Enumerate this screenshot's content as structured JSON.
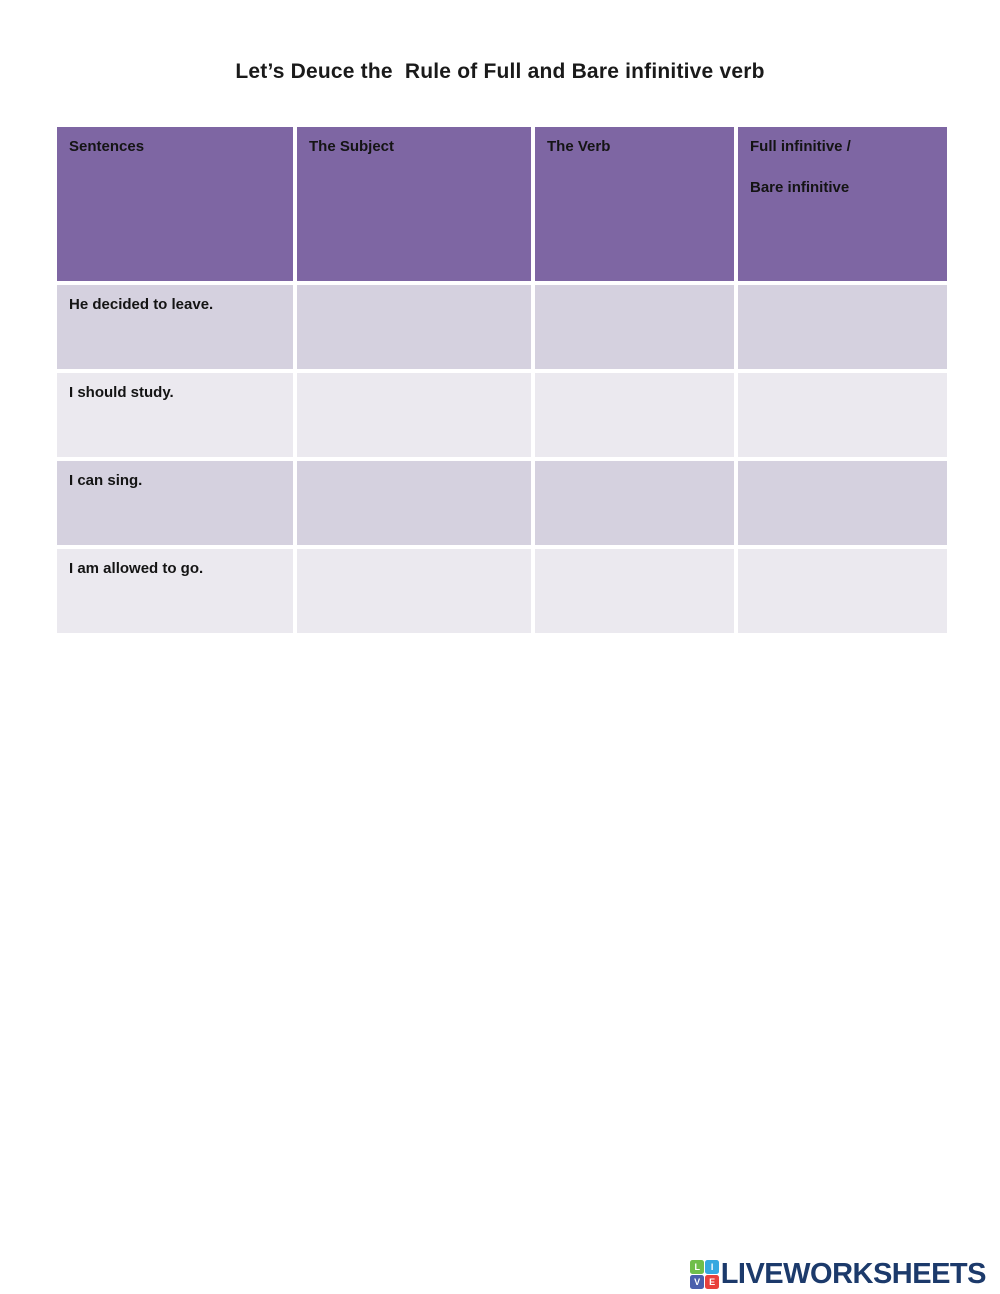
{
  "title": "Let’s Deuce the  Rule of Full and Bare infinitive verb",
  "colors": {
    "header_bg": "#7E66A3",
    "row_odd_bg": "#D5D1DF",
    "row_even_bg": "#EBE9EF",
    "title_text": "#1A1A1A",
    "cell_text": "#141414",
    "logo_text": "#1C3A6B",
    "logo_squares": {
      "l": "#6FBE4A",
      "i": "#35A8E0",
      "v": "#4A5FAC",
      "e": "#E8413C"
    }
  },
  "table": {
    "headers": [
      {
        "label": "Sentences"
      },
      {
        "label": "The Subject"
      },
      {
        "label": "The Verb"
      },
      {
        "label_line1": "Full infinitive /",
        "label_line2": "Bare infinitive"
      }
    ],
    "rows": [
      {
        "sentence": "He decided to leave.",
        "subject": "",
        "verb": "",
        "infinitive": ""
      },
      {
        "sentence": "I should study.",
        "subject": "",
        "verb": "",
        "infinitive": ""
      },
      {
        "sentence": "I can sing.",
        "subject": "",
        "verb": "",
        "infinitive": ""
      },
      {
        "sentence": "I am allowed to go.",
        "subject": "",
        "verb": "",
        "infinitive": ""
      }
    ]
  },
  "footer": {
    "logo_text": "LIVEWORKSHEETS",
    "logo_letters": [
      "L",
      "I",
      "V",
      "E"
    ]
  }
}
